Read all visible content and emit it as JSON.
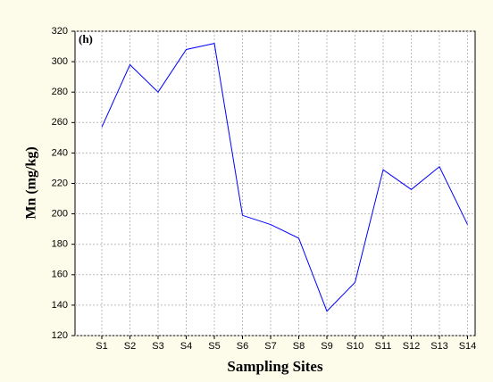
{
  "chart_data": {
    "type": "line",
    "annotation": "(h)",
    "x_label": "Sampling Sites",
    "y_label": "Mn (mg/kg)",
    "categories": [
      "S1",
      "S2",
      "S3",
      "S4",
      "S5",
      "S6",
      "S7",
      "S8",
      "S9",
      "S10",
      "S11",
      "S12",
      "S13",
      "S14"
    ],
    "values": [
      257,
      298,
      280,
      308,
      312,
      199,
      193,
      184,
      136,
      155,
      229,
      216,
      231,
      193
    ],
    "color": "#0000ff",
    "ylim": [
      120,
      320
    ],
    "yticks": [
      120,
      140,
      160,
      180,
      200,
      220,
      240,
      260,
      280,
      300,
      320
    ],
    "grid": true
  }
}
